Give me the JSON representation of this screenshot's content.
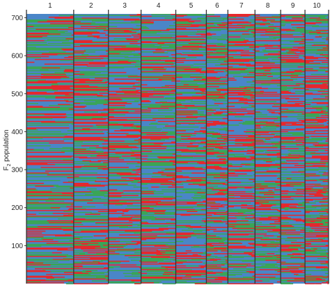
{
  "chart_data": {
    "type": "heatmap",
    "ylabel_main": "F",
    "ylabel_sub": "2",
    "ylabel_rest": " population",
    "xlabel": "",
    "chromosomes": [
      {
        "label": "1",
        "width_share": 68
      },
      {
        "label": "2",
        "width_share": 50
      },
      {
        "label": "3",
        "width_share": 47
      },
      {
        "label": "4",
        "width_share": 50
      },
      {
        "label": "5",
        "width_share": 44
      },
      {
        "label": "6",
        "width_share": 31
      },
      {
        "label": "7",
        "width_share": 39
      },
      {
        "label": "8",
        "width_share": 37
      },
      {
        "label": "9",
        "width_share": 35
      },
      {
        "label": "10",
        "width_share": 34
      }
    ],
    "y_ticks": [
      100,
      200,
      300,
      400,
      500,
      600,
      700
    ],
    "ylim": [
      0,
      710
    ],
    "genotype_colors": {
      "homozygous_parent_a": "#e8262a",
      "homozygous_parent_b": "#4a86c8",
      "heterozygous": "#3aa655"
    },
    "genotype_mix": {
      "homozygous_parent_a": 0.27,
      "homozygous_parent_b": 0.46,
      "heterozygous": 0.27
    }
  }
}
